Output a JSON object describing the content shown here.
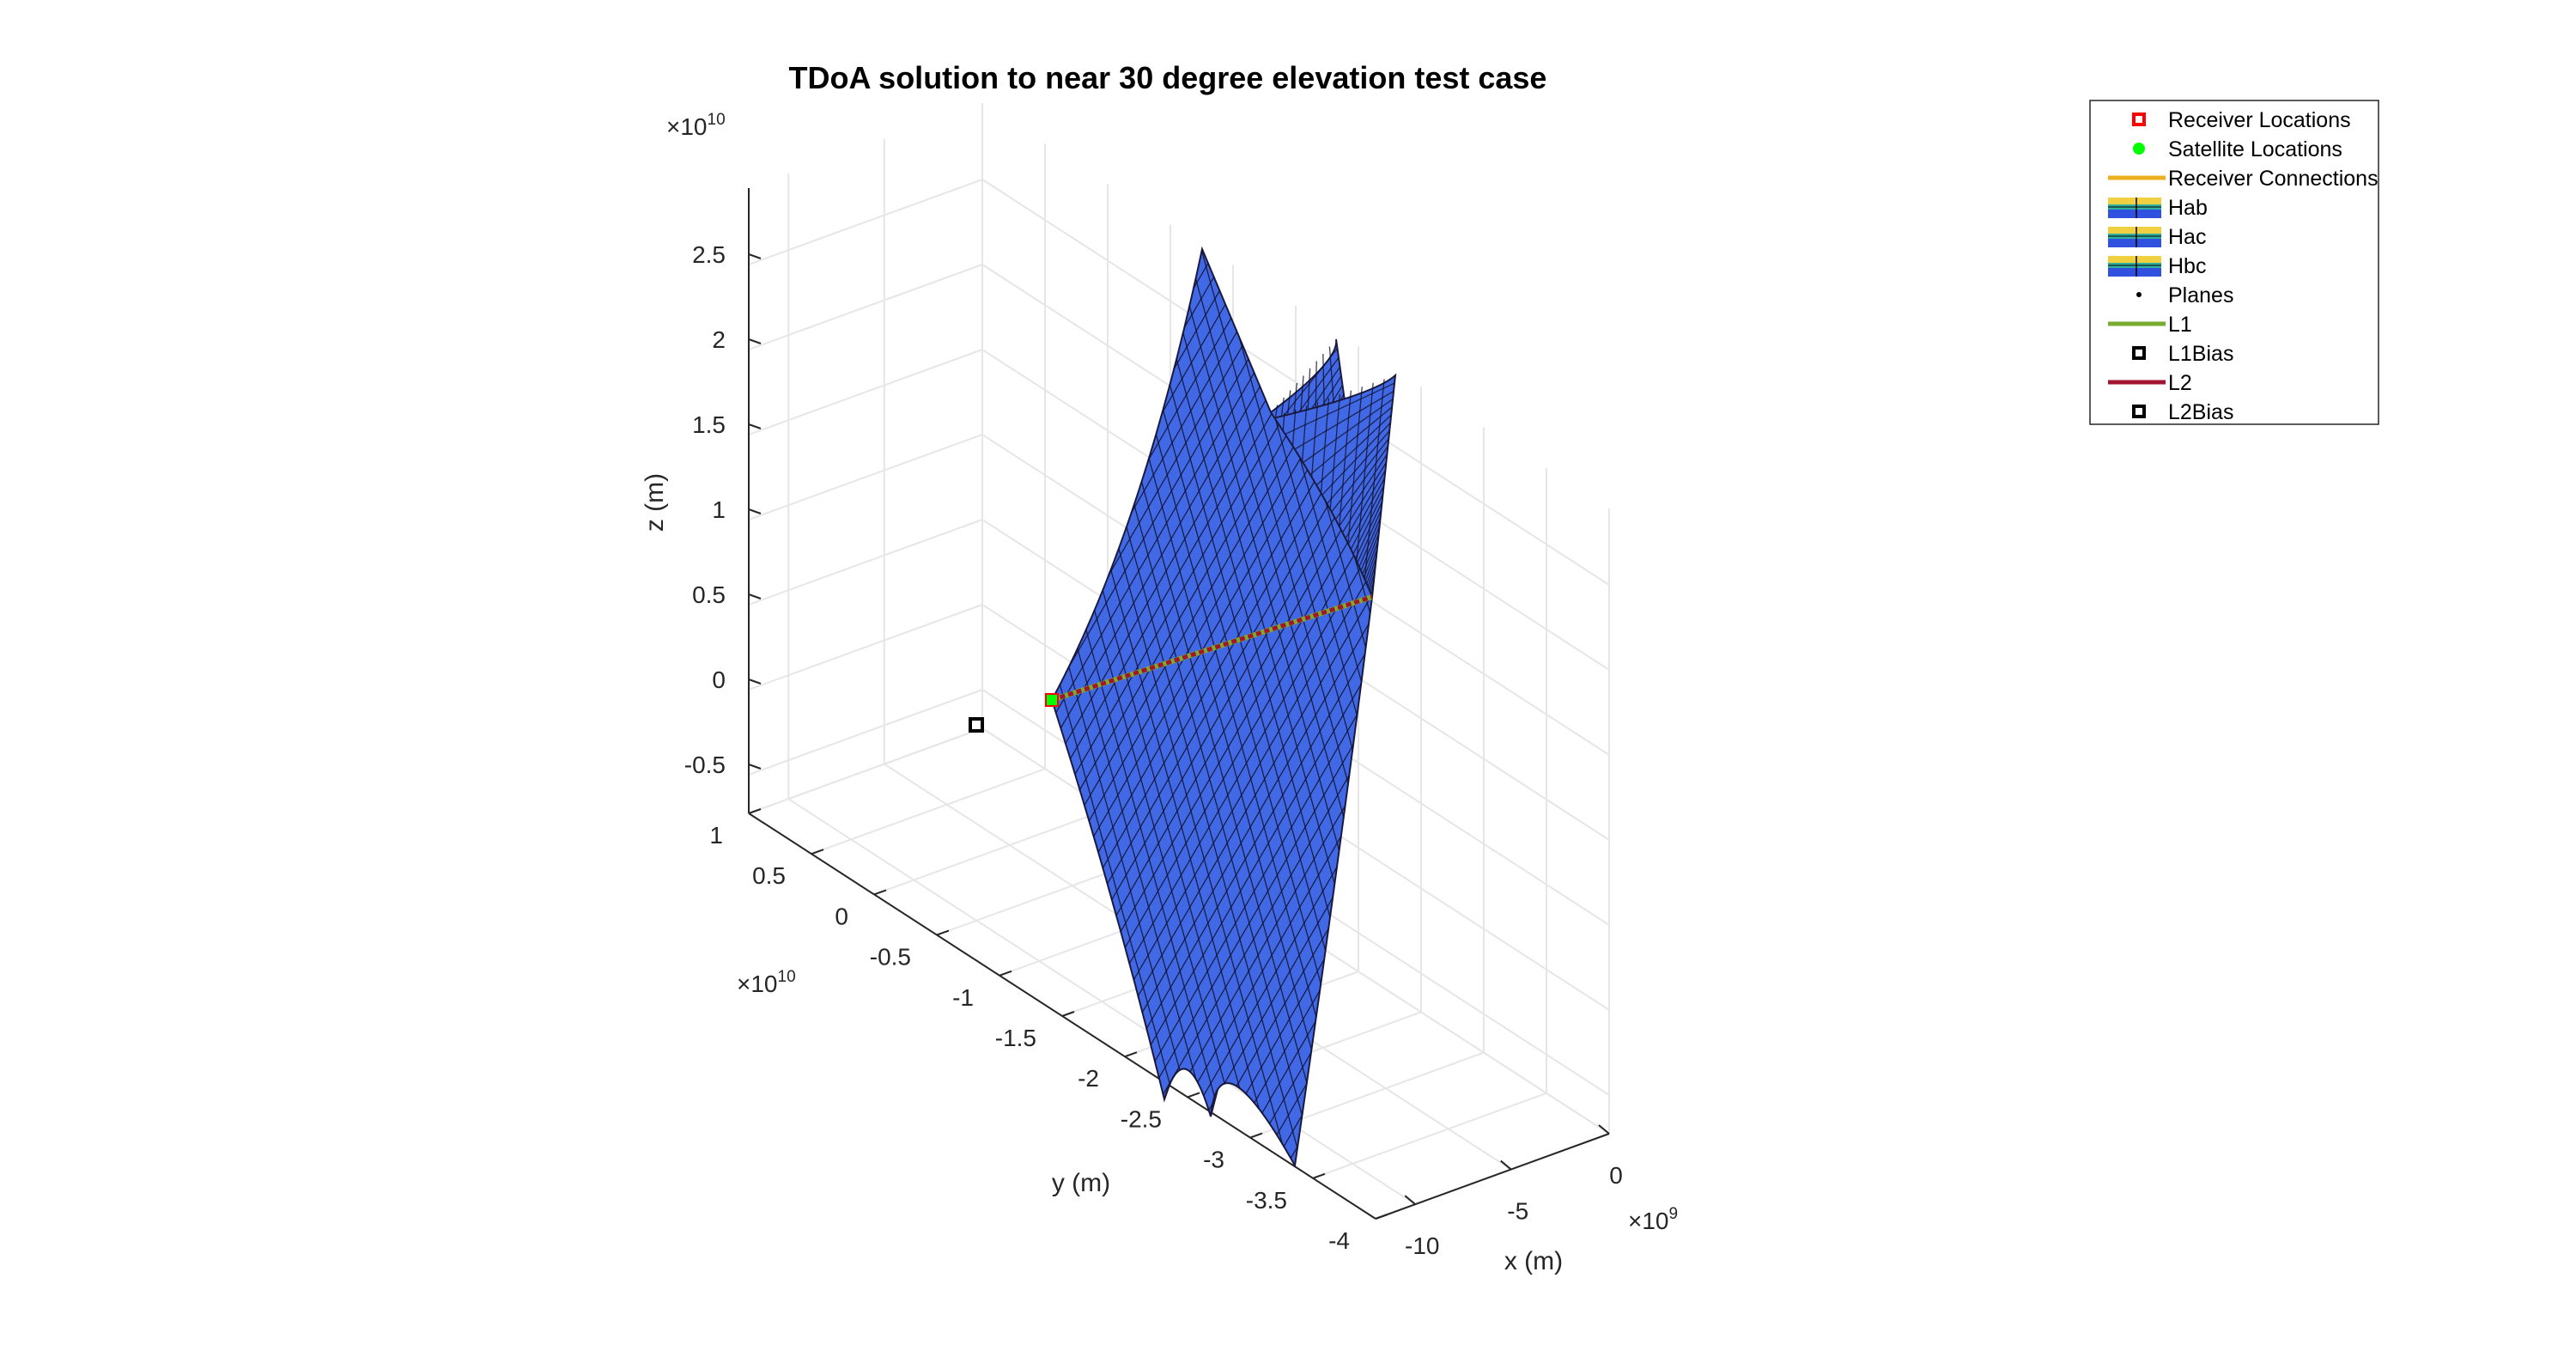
{
  "chart_data": {
    "type": "surface3d",
    "title": "TDoA solution to near 30 degree elevation test case",
    "xlabel": "x (m)",
    "ylabel": "y (m)",
    "zlabel": "z (m)",
    "x_exponent": "10",
    "x_exponent_power": "9",
    "y_exponent": "10",
    "y_exponent_power": "10",
    "z_exponent": "10",
    "z_exponent_power": "10",
    "x_ticks": [
      "-10",
      "-5",
      "0"
    ],
    "y_ticks": [
      "1",
      "0.5",
      "0",
      "-0.5",
      "-1",
      "-1.5",
      "-2",
      "-2.5",
      "-3",
      "-3.5",
      "-4"
    ],
    "z_ticks": [
      "2.5",
      "2",
      "1.5",
      "1",
      "0.5",
      "0",
      "-0.5"
    ],
    "grid": true,
    "surface_color": "#4169e6",
    "legend_position": "top-right",
    "legend": [
      {
        "label": "Receiver Locations",
        "kind": "square-marker",
        "color": "#ff0000"
      },
      {
        "label": "Satellite Locations",
        "kind": "dot-marker",
        "color": "#00ff00"
      },
      {
        "label": "Receiver Connections",
        "kind": "line",
        "color": "#edb120"
      },
      {
        "label": "Hab",
        "kind": "surface",
        "color": "parula"
      },
      {
        "label": "Hac",
        "kind": "surface",
        "color": "parula"
      },
      {
        "label": "Hbc",
        "kind": "surface",
        "color": "parula"
      },
      {
        "label": "Planes",
        "kind": "point",
        "color": "#000000"
      },
      {
        "label": "L1",
        "kind": "line",
        "color": "#77ac30"
      },
      {
        "label": "L1Bias",
        "kind": "square-marker",
        "color": "#000000"
      },
      {
        "label": "L2",
        "kind": "line",
        "color": "#a2142f"
      },
      {
        "label": "L2Bias",
        "kind": "square-marker",
        "color": "#000000"
      }
    ]
  }
}
